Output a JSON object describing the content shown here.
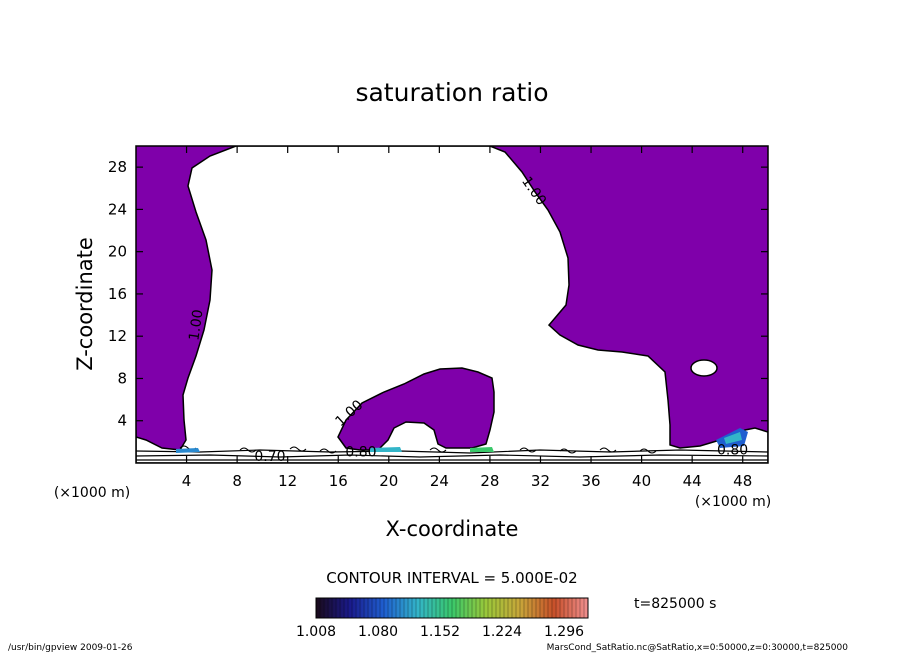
{
  "chart_data": {
    "type": "contour",
    "title": "saturation ratio",
    "xlabel": "X-coordinate",
    "ylabel": "Z-coordinate",
    "x_unit": "(×1000 m)",
    "y_unit": "(×1000 m)",
    "xlim": [
      0,
      50
    ],
    "ylim": [
      0,
      30
    ],
    "x_ticks": [
      4,
      8,
      12,
      16,
      20,
      24,
      28,
      32,
      36,
      40,
      44,
      48
    ],
    "y_ticks": [
      4,
      8,
      12,
      16,
      20,
      24,
      28
    ],
    "contour_labels": [
      {
        "text": "1.00",
        "x": 31.2,
        "z": 25.5,
        "angle": 55
      },
      {
        "text": "1.00",
        "x": 5.1,
        "z": 13.0,
        "angle": -82
      },
      {
        "text": "1.00",
        "x": 17.1,
        "z": 4.4,
        "angle": -42
      },
      {
        "text": "0.70",
        "x": 10.6,
        "z": 0.2,
        "angle": 0
      },
      {
        "text": "0.80",
        "x": 17.8,
        "z": 0.6,
        "angle": 0
      },
      {
        "text": "0.80",
        "x": 47.2,
        "z": 0.8,
        "angle": 0
      }
    ],
    "contour_interval_text": "CONTOUR INTERVAL = 5.000E-02",
    "colorbar": {
      "min": 1.008,
      "max": 1.3,
      "tick_labels": [
        "1.008",
        "1.080",
        "1.152",
        "1.224",
        "1.296"
      ],
      "colors": [
        "#1a0a1a",
        "#1a1a8c",
        "#1f5fd0",
        "#33b5c8",
        "#3ac86a",
        "#9ac83a",
        "#c8a63a",
        "#c8502a",
        "#f09090"
      ]
    },
    "fill_color": "#7f00aa",
    "time_text": "t=825000 s"
  },
  "footer": {
    "left": "/usr/bin/gpview   2009-01-26",
    "right": "MarsCond_SatRatio.nc@SatRatio,x=0:50000,z=0:30000,t=825000"
  }
}
